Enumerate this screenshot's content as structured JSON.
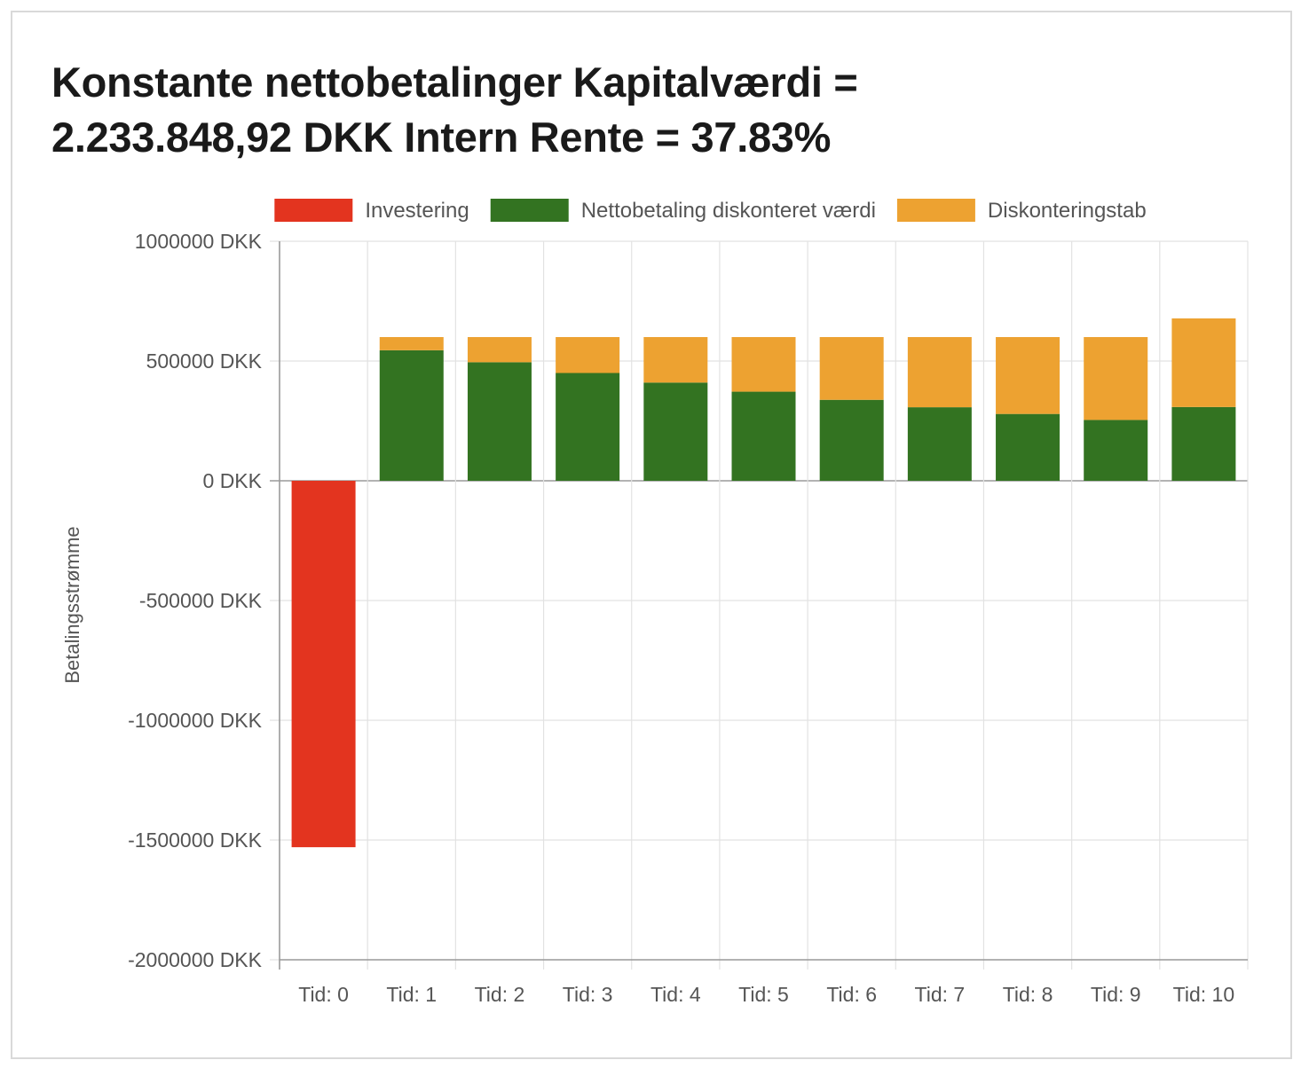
{
  "chart_data": {
    "type": "bar",
    "stacked": true,
    "title": "Konstante nettobetalinger Kapitalværdi = 2.233.848,92 DKK Intern Rente = 37.83%",
    "ylabel": "Betalingsstrømme",
    "xlabel": "",
    "ylim": [
      -2000000,
      1000000
    ],
    "y_tick_values": [
      1000000,
      500000,
      0,
      -500000,
      -1000000,
      -1500000,
      -2000000
    ],
    "y_tick_labels": [
      "1000000 DKK",
      "500000 DKK",
      "0 DKK",
      "-500000 DKK",
      "-1000000 DKK",
      "-1500000 DKK",
      "-2000000 DKK"
    ],
    "categories": [
      "Tid: 0",
      "Tid: 1",
      "Tid: 2",
      "Tid: 3",
      "Tid: 4",
      "Tid: 5",
      "Tid: 6",
      "Tid: 7",
      "Tid: 8",
      "Tid: 9",
      "Tid: 10"
    ],
    "legend_position": "top",
    "grid": true,
    "series": [
      {
        "name": "Investering",
        "color": "#e3341f",
        "values": [
          -1530000,
          0,
          0,
          0,
          0,
          0,
          0,
          0,
          0,
          0,
          0
        ]
      },
      {
        "name": "Nettobetaling diskonteret værdi",
        "color": "#337321",
        "values": [
          0,
          545000,
          495000,
          450000,
          410000,
          372000,
          338000,
          307000,
          279000,
          254000,
          308000
        ]
      },
      {
        "name": "Diskonteringstab",
        "color": "#eda231",
        "values": [
          0,
          55000,
          105000,
          150000,
          190000,
          228000,
          262000,
          293000,
          321000,
          346000,
          370000
        ]
      }
    ]
  }
}
